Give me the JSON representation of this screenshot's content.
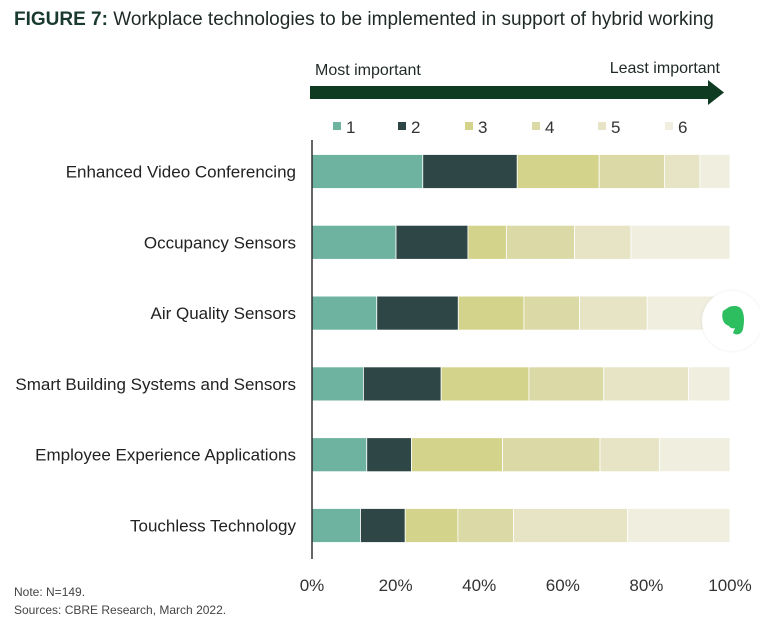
{
  "figure": {
    "label": "FIGURE 7:",
    "title": "Workplace technologies to be implemented in support of hybrid working"
  },
  "notes": {
    "note": "Note: N=149.",
    "sources": "Sources: CBRE Research, March 2022."
  },
  "chart_data": {
    "type": "bar",
    "orientation": "horizontal",
    "stacked": true,
    "scale_arrow": {
      "left": "Most important",
      "right": "Least important"
    },
    "categories": [
      "Enhanced Video Conferencing",
      "Occupancy Sensors",
      "Air Quality Sensors",
      "Smart Building Systems and Sensors",
      "Employee Experience Applications",
      "Touchless Technology"
    ],
    "series": [
      {
        "name": "1",
        "color": "#6db39f",
        "values": [
          26.5,
          20.1,
          15.5,
          12.3,
          13.1,
          11.6
        ]
      },
      {
        "name": "2",
        "color": "#2f4646",
        "values": [
          22.6,
          17.2,
          19.5,
          18.6,
          10.7,
          10.7
        ]
      },
      {
        "name": "3",
        "color": "#d4d38b",
        "values": [
          19.6,
          9.2,
          15.7,
          21.0,
          21.8,
          12.6
        ]
      },
      {
        "name": "4",
        "color": "#dbd9a6",
        "values": [
          15.6,
          16.3,
          13.3,
          17.9,
          23.3,
          13.3
        ]
      },
      {
        "name": "5",
        "color": "#e6e4c4",
        "values": [
          8.5,
          13.5,
          16.2,
          20.3,
          14.2,
          27.3
        ]
      },
      {
        "name": "6",
        "color": "#efeedf",
        "values": [
          7.2,
          23.7,
          19.8,
          9.9,
          16.9,
          24.5
        ]
      }
    ],
    "xticks": [
      "0%",
      "20%",
      "40%",
      "60%",
      "80%",
      "100%"
    ],
    "xlim": [
      0,
      100
    ],
    "legend_position": "top",
    "grid": false
  },
  "badge": {
    "icon": "evernote-elephant-icon",
    "color": "#2dbe60"
  }
}
